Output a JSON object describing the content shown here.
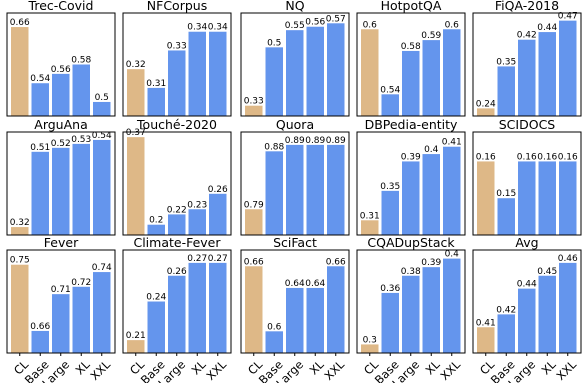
{
  "colors": {
    "cl": "#deb887",
    "model": "#6495ed"
  },
  "chart_data": [
    {
      "type": "bar",
      "title": "Trec-Covid",
      "categories": [
        "CL",
        "Base",
        "Large",
        "XL",
        "XXL"
      ],
      "values": [
        0.66,
        0.54,
        0.56,
        0.58,
        0.5
      ],
      "labels": [
        "0.66",
        "0.54",
        "0.56",
        "0.58",
        "0.5"
      ],
      "ylim": [
        0.47,
        0.69
      ]
    },
    {
      "type": "bar",
      "title": "NFCorpus",
      "categories": [
        "CL",
        "Base",
        "Large",
        "XL",
        "XXL"
      ],
      "values": [
        0.32,
        0.31,
        0.33,
        0.34,
        0.34
      ],
      "labels": [
        "0.32",
        "0.31",
        "0.33",
        "0.34",
        "0.34"
      ],
      "ylim": [
        0.295,
        0.35
      ]
    },
    {
      "type": "bar",
      "title": "NQ",
      "categories": [
        "CL",
        "Base",
        "Large",
        "XL",
        "XXL"
      ],
      "values": [
        0.33,
        0.5,
        0.55,
        0.56,
        0.57
      ],
      "labels": [
        "0.33",
        "0.5",
        "0.55",
        "0.56",
        "0.57"
      ],
      "ylim": [
        0.3,
        0.6
      ]
    },
    {
      "type": "bar",
      "title": "HotpotQA",
      "categories": [
        "CL",
        "Base",
        "Large",
        "XL",
        "XXL"
      ],
      "values": [
        0.6,
        0.54,
        0.58,
        0.59,
        0.6
      ],
      "labels": [
        "0.6",
        "0.54",
        "0.58",
        "0.59",
        "0.6"
      ],
      "ylim": [
        0.52,
        0.615
      ]
    },
    {
      "type": "bar",
      "title": "FiQA-2018",
      "categories": [
        "CL",
        "Base",
        "Large",
        "XL",
        "XXL"
      ],
      "values": [
        0.24,
        0.35,
        0.42,
        0.44,
        0.47
      ],
      "labels": [
        "0.24",
        "0.35",
        "0.42",
        "0.44",
        "0.47"
      ],
      "ylim": [
        0.22,
        0.49
      ]
    },
    {
      "type": "bar",
      "title": "ArguAna",
      "categories": [
        "CL",
        "Base",
        "Large",
        "XL",
        "XXL"
      ],
      "values": [
        0.32,
        0.51,
        0.52,
        0.53,
        0.54
      ],
      "labels": [
        "0.32",
        "0.51",
        "0.52",
        "0.53",
        "0.54"
      ],
      "ylim": [
        0.3,
        0.56
      ]
    },
    {
      "type": "bar",
      "title": "Touché-2020",
      "categories": [
        "CL",
        "Base",
        "Large",
        "XL",
        "XXL"
      ],
      "values": [
        0.37,
        0.2,
        0.22,
        0.23,
        0.26
      ],
      "labels": [
        "0.37",
        "0.2",
        "0.22",
        "0.23",
        "0.26"
      ],
      "ylim": [
        0.18,
        0.38
      ]
    },
    {
      "type": "bar",
      "title": "Quora",
      "categories": [
        "CL",
        "Base",
        "Large",
        "XL",
        "XXL"
      ],
      "values": [
        0.79,
        0.88,
        0.89,
        0.89,
        0.89
      ],
      "labels": [
        "0.79",
        "0.88",
        "0.89",
        "0.89",
        "0.89"
      ],
      "ylim": [
        0.75,
        0.91
      ]
    },
    {
      "type": "bar",
      "title": "DBPedia-entity",
      "categories": [
        "CL",
        "Base",
        "Large",
        "XL",
        "XXL"
      ],
      "values": [
        0.31,
        0.35,
        0.39,
        0.4,
        0.41
      ],
      "labels": [
        "0.31",
        "0.35",
        "0.39",
        "0.4",
        "0.41"
      ],
      "ylim": [
        0.29,
        0.43
      ]
    },
    {
      "type": "bar",
      "title": "SCIDOCS",
      "categories": [
        "CL",
        "Base",
        "Large",
        "XL",
        "XXL"
      ],
      "values": [
        0.16,
        0.15,
        0.16,
        0.16,
        0.16
      ],
      "labels": [
        "0.16",
        "0.15",
        "0.16",
        "0.16",
        "0.16"
      ],
      "ylim": [
        0.14,
        0.168
      ]
    },
    {
      "type": "bar",
      "title": "Fever",
      "categories": [
        "CL",
        "Base",
        "Large",
        "XL",
        "XXL"
      ],
      "values": [
        0.75,
        0.66,
        0.71,
        0.72,
        0.74
      ],
      "labels": [
        "0.75",
        "0.66",
        "0.71",
        "0.72",
        "0.74"
      ],
      "ylim": [
        0.63,
        0.77
      ]
    },
    {
      "type": "bar",
      "title": "Climate-Fever",
      "categories": [
        "CL",
        "Base",
        "Large",
        "XL",
        "XXL"
      ],
      "values": [
        0.21,
        0.24,
        0.26,
        0.27,
        0.27
      ],
      "labels": [
        "0.21",
        "0.24",
        "0.26",
        "0.27",
        "0.27"
      ],
      "ylim": [
        0.2,
        0.28
      ]
    },
    {
      "type": "bar",
      "title": "SciFact",
      "categories": [
        "CL",
        "Base",
        "Large",
        "XL",
        "XXL"
      ],
      "values": [
        0.66,
        0.6,
        0.64,
        0.64,
        0.66
      ],
      "labels": [
        "0.66",
        "0.6",
        "0.64",
        "0.64",
        "0.66"
      ],
      "ylim": [
        0.58,
        0.675
      ]
    },
    {
      "type": "bar",
      "title": "CQADupStack",
      "categories": [
        "CL",
        "Base",
        "Large",
        "XL",
        "XXL"
      ],
      "values": [
        0.3,
        0.36,
        0.38,
        0.39,
        0.4
      ],
      "labels": [
        "0.3",
        "0.36",
        "0.38",
        "0.39",
        "0.4"
      ],
      "ylim": [
        0.29,
        0.41
      ]
    },
    {
      "type": "bar",
      "title": "Avg",
      "categories": [
        "CL",
        "Base",
        "Large",
        "XL",
        "XXL"
      ],
      "values": [
        0.41,
        0.42,
        0.44,
        0.45,
        0.46
      ],
      "labels": [
        "0.41",
        "0.42",
        "0.44",
        "0.45",
        "0.46"
      ],
      "ylim": [
        0.39,
        0.47
      ]
    }
  ]
}
